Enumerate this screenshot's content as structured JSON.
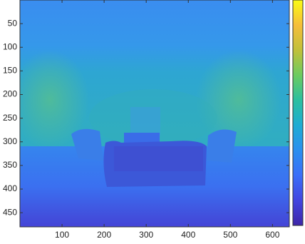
{
  "chart_data": {
    "type": "image",
    "xlim": [
      0,
      640
    ],
    "ylim": [
      0,
      480
    ],
    "y_reversed": true,
    "xticks": [
      100,
      200,
      300,
      400,
      500,
      600
    ],
    "yticks": [
      50,
      100,
      150,
      200,
      250,
      300,
      350,
      400,
      450
    ],
    "colorbar": true,
    "colormap": [
      "#3e26a8",
      "#4245e0",
      "#3a6ef8",
      "#2a8fef",
      "#1eacd3",
      "#2bbfa0",
      "#6ccb5f",
      "#c1c03a",
      "#f6be3a",
      "#f9fb15"
    ]
  }
}
